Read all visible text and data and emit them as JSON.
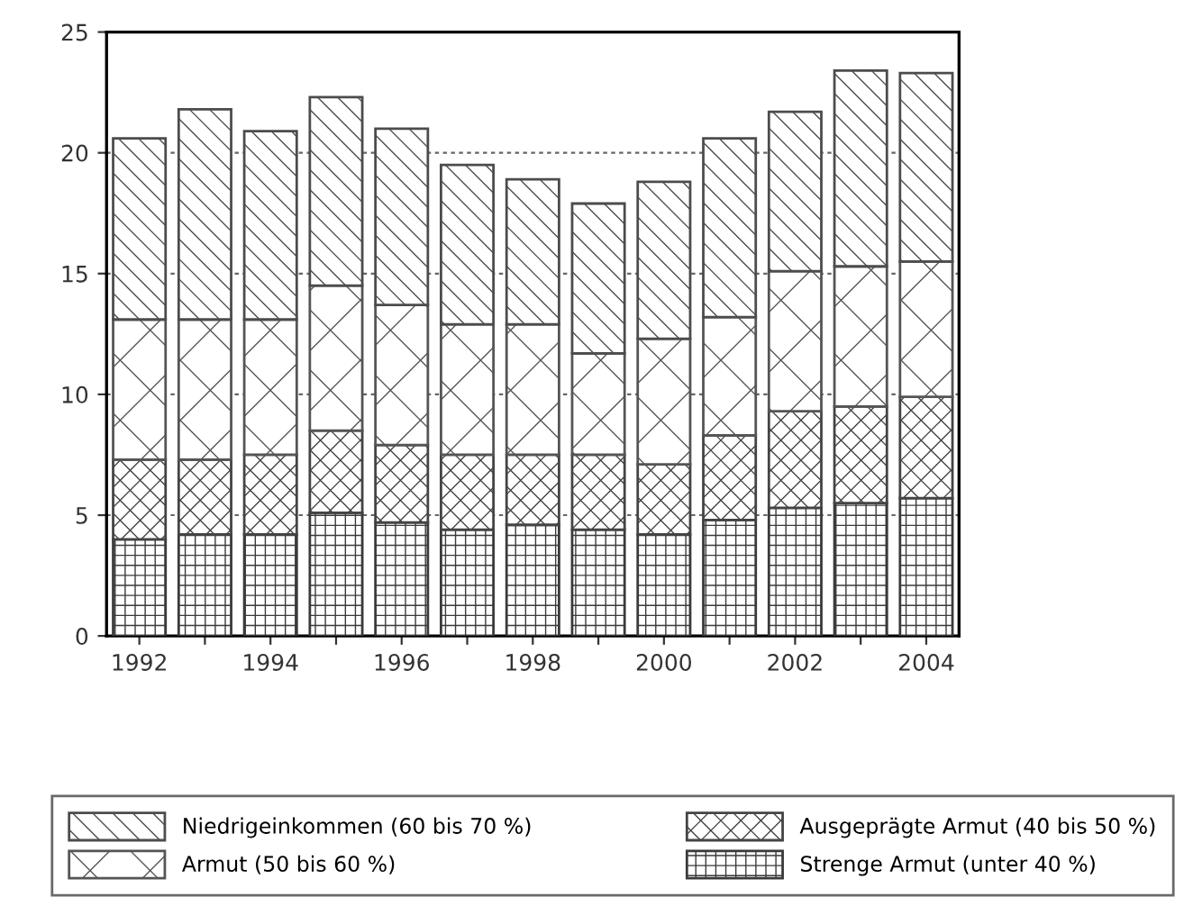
{
  "chart_data": {
    "type": "bar",
    "stacked": true,
    "categories": [
      "1992",
      null,
      "1994",
      null,
      "1996",
      null,
      "1998",
      null,
      "2000",
      null,
      "2002",
      null,
      "2004"
    ],
    "series": [
      {
        "name": "Strenge Armut (unter 40 %)",
        "color": "#3a3a3a",
        "values": [
          4.0,
          4.2,
          4.2,
          5.1,
          4.7,
          4.4,
          4.6,
          4.4,
          4.2,
          4.8,
          5.3,
          5.5,
          5.7
        ]
      },
      {
        "name": "Ausgeprägte Armut (40 bis 50 %)",
        "color": "#444444",
        "values": [
          3.3,
          3.1,
          3.3,
          3.4,
          3.2,
          3.1,
          2.9,
          3.1,
          2.9,
          3.5,
          4.0,
          4.0,
          4.2
        ]
      },
      {
        "name": "Armut (50 bis 60 %)",
        "color": "#555555",
        "values": [
          5.8,
          5.8,
          5.6,
          6.0,
          5.8,
          5.4,
          5.4,
          4.2,
          5.2,
          4.9,
          5.8,
          5.8,
          5.6
        ]
      },
      {
        "name": "Niedrigeinkommen (60 bis 70 %)",
        "color": "#4c4c4c",
        "values": [
          7.5,
          8.7,
          7.8,
          7.8,
          7.3,
          6.6,
          6.0,
          6.2,
          6.5,
          7.4,
          6.6,
          8.1,
          7.8
        ]
      }
    ],
    "ylim": [
      0,
      25
    ],
    "yticks": [
      0,
      5,
      10,
      15,
      20,
      25
    ],
    "grid": "y",
    "legend": "bottom"
  }
}
